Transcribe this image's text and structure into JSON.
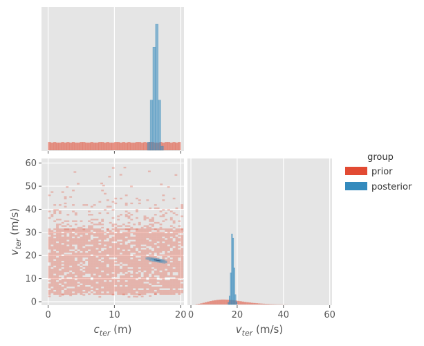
{
  "colors": {
    "prior": "#E24A33",
    "posterior": "#348ABD",
    "panel_bg": "#E5E5E5",
    "grid": "#FFFFFF",
    "tick_text": "#555555"
  },
  "legend": {
    "title": "group",
    "placement": "right",
    "items": [
      {
        "key": "prior",
        "label": "prior",
        "color": "#E24A33"
      },
      {
        "key": "posterior",
        "label": "posterior",
        "color": "#348ABD"
      }
    ]
  },
  "chart_data": [
    {
      "type": "bar",
      "panel": "c_ter-marginal",
      "xlim": [
        -1,
        20.5
      ],
      "x_ticks": [
        0,
        10,
        20
      ],
      "show_x_tick_labels": false,
      "show_y_axis": false,
      "grid": true,
      "prior": {
        "bin_start": 0,
        "bin_width": 0.4,
        "counts": [
          12,
          11,
          12,
          11,
          11,
          12,
          11,
          12,
          11,
          12,
          11,
          11,
          12,
          12,
          11,
          11,
          12,
          11,
          11,
          12,
          12,
          11,
          12,
          11,
          11,
          12,
          12,
          11,
          12,
          11,
          12,
          11,
          11,
          12,
          12,
          11,
          12,
          11,
          12,
          12,
          11,
          11,
          12,
          11,
          12,
          12,
          11,
          12,
          11,
          12
        ]
      },
      "posterior": {
        "bin_start": 15,
        "bin_width": 0.4,
        "counts": [
          12,
          74,
          152,
          186,
          74,
          6
        ]
      }
    },
    {
      "type": "heatmap",
      "panel": "joint",
      "xlabel": "c_ter (m)",
      "ylabel": "v_ter (m/s)",
      "xlim": [
        -1,
        20.5
      ],
      "ylim": [
        -1.5,
        62
      ],
      "x_ticks": [
        0,
        10,
        20
      ],
      "y_ticks": [
        0,
        10,
        20,
        30,
        40,
        50,
        60
      ],
      "grid": true,
      "prior_region": {
        "x_range": [
          0,
          20
        ],
        "v_dense_range": [
          3,
          31
        ],
        "v_sparse_range": [
          31,
          48
        ],
        "outliers_to": 58
      },
      "posterior_region": {
        "center": [
          16.3,
          17.8
        ],
        "x_spread": 1.6,
        "v_spread": 0.9,
        "slope": -0.5
      }
    },
    {
      "type": "bar",
      "panel": "v_ter-marginal",
      "xlabel": "v_ter (m/s)",
      "xlim": [
        -1.5,
        61
      ],
      "x_ticks": [
        0,
        20,
        40,
        60
      ],
      "grid": true,
      "prior": {
        "bin_start": 2,
        "bin_width": 1,
        "counts": [
          0.5,
          1,
          1.6,
          2.4,
          3.2,
          4.1,
          4.8,
          5.5,
          6,
          6.5,
          6.8,
          7,
          7,
          6.9,
          6.7,
          6.4,
          6,
          5.6,
          5.1,
          4.6,
          4.1,
          3.6,
          3.2,
          2.8,
          2.4,
          2.1,
          1.8,
          1.5,
          1.3,
          1.1,
          0.9,
          0.8,
          0.6,
          0.5,
          0.4,
          0.3,
          0.3,
          0.2,
          0.2,
          0.1
        ]
      },
      "posterior": {
        "bin_start": 16,
        "bin_width": 0.5,
        "counts": [
          3,
          12,
          45,
          100,
          94,
          52,
          14,
          4
        ]
      }
    }
  ]
}
